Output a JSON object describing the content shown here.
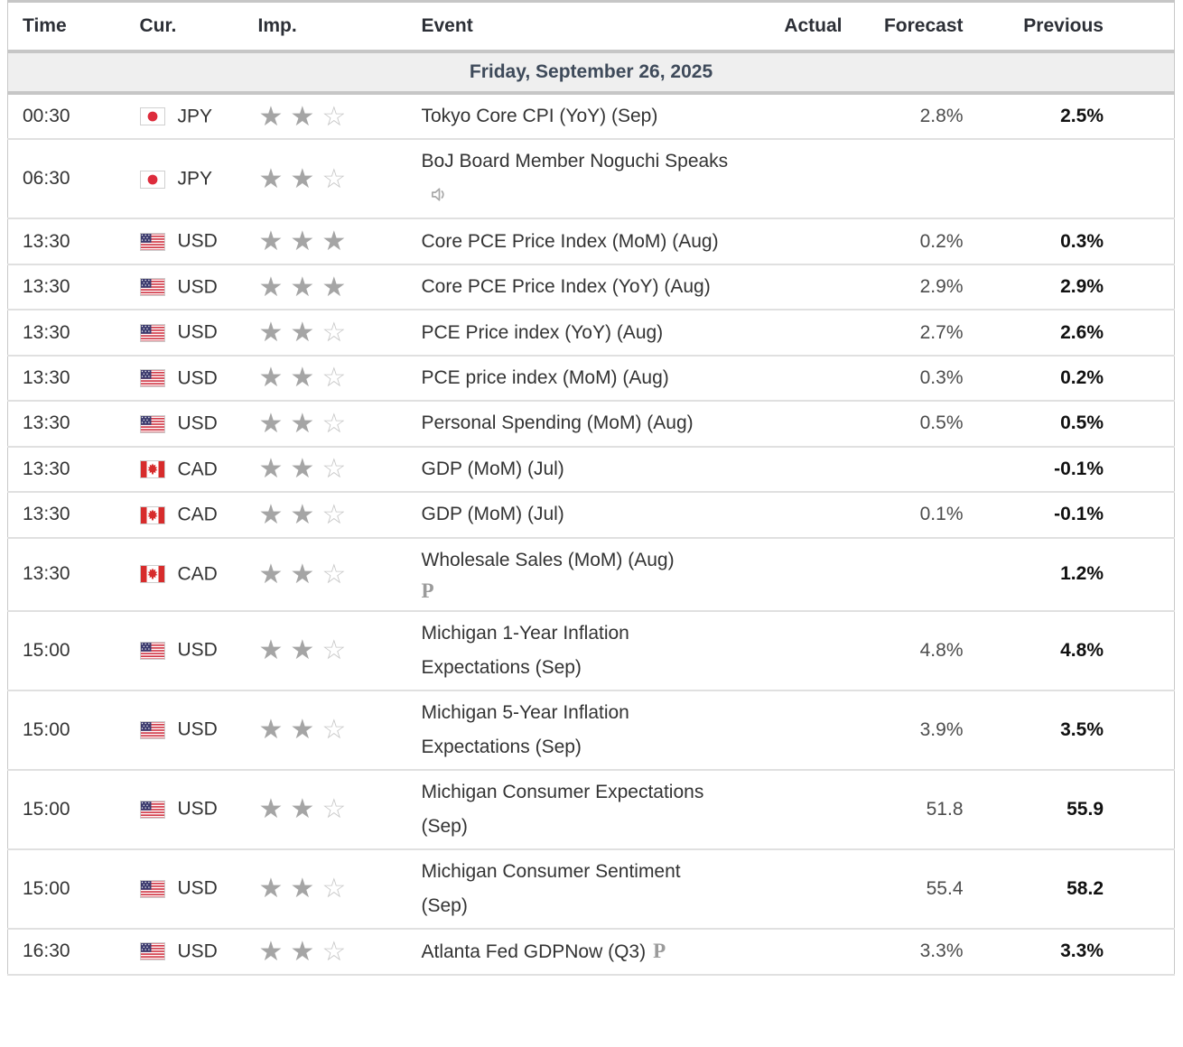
{
  "table": {
    "columns": [
      "Time",
      "Cur.",
      "Imp.",
      "Event",
      "Actual",
      "Forecast",
      "Previous"
    ],
    "date_header": "Friday, September 26, 2025",
    "max_importance": 3,
    "rows": [
      {
        "time": "00:30",
        "currency": "JPY",
        "flag": "JP",
        "importance": 2,
        "event": "Tokyo Core CPI (YoY) (Sep)",
        "speaker_icon": false,
        "preliminary_icon": "none",
        "actual": "",
        "forecast": "2.8%",
        "previous": "2.5%"
      },
      {
        "time": "06:30",
        "currency": "JPY",
        "flag": "JP",
        "importance": 2,
        "event": "BoJ Board Member Noguchi Speaks",
        "speaker_icon": true,
        "preliminary_icon": "none",
        "actual": "",
        "forecast": "",
        "previous": ""
      },
      {
        "time": "13:30",
        "currency": "USD",
        "flag": "US",
        "importance": 3,
        "event": "Core PCE Price Index (MoM) (Aug)",
        "speaker_icon": false,
        "preliminary_icon": "none",
        "actual": "",
        "forecast": "0.2%",
        "previous": "0.3%"
      },
      {
        "time": "13:30",
        "currency": "USD",
        "flag": "US",
        "importance": 3,
        "event": "Core PCE Price Index (YoY) (Aug)",
        "speaker_icon": false,
        "preliminary_icon": "none",
        "actual": "",
        "forecast": "2.9%",
        "previous": "2.9%"
      },
      {
        "time": "13:30",
        "currency": "USD",
        "flag": "US",
        "importance": 2,
        "event": "PCE Price index (YoY) (Aug)",
        "speaker_icon": false,
        "preliminary_icon": "none",
        "actual": "",
        "forecast": "2.7%",
        "previous": "2.6%"
      },
      {
        "time": "13:30",
        "currency": "USD",
        "flag": "US",
        "importance": 2,
        "event": "PCE price index (MoM) (Aug)",
        "speaker_icon": false,
        "preliminary_icon": "none",
        "actual": "",
        "forecast": "0.3%",
        "previous": "0.2%"
      },
      {
        "time": "13:30",
        "currency": "USD",
        "flag": "US",
        "importance": 2,
        "event": "Personal Spending (MoM) (Aug)",
        "speaker_icon": false,
        "preliminary_icon": "none",
        "actual": "",
        "forecast": "0.5%",
        "previous": "0.5%"
      },
      {
        "time": "13:30",
        "currency": "CAD",
        "flag": "CA",
        "importance": 2,
        "event": "GDP (MoM) (Jul)",
        "speaker_icon": false,
        "preliminary_icon": "none",
        "actual": "",
        "forecast": "",
        "previous": "-0.1%"
      },
      {
        "time": "13:30",
        "currency": "CAD",
        "flag": "CA",
        "importance": 2,
        "event": "GDP (MoM) (Jul)",
        "speaker_icon": false,
        "preliminary_icon": "none",
        "actual": "",
        "forecast": "0.1%",
        "previous": "-0.1%"
      },
      {
        "time": "13:30",
        "currency": "CAD",
        "flag": "CA",
        "importance": 2,
        "event": "Wholesale Sales (MoM) (Aug)",
        "speaker_icon": false,
        "preliminary_icon": "newline",
        "actual": "",
        "forecast": "",
        "previous": "1.2%"
      },
      {
        "time": "15:00",
        "currency": "USD",
        "flag": "US",
        "importance": 2,
        "event": "Michigan 1-Year Inflation Expectations (Sep)",
        "speaker_icon": false,
        "preliminary_icon": "none",
        "actual": "",
        "forecast": "4.8%",
        "previous": "4.8%"
      },
      {
        "time": "15:00",
        "currency": "USD",
        "flag": "US",
        "importance": 2,
        "event": "Michigan 5-Year Inflation Expectations (Sep)",
        "speaker_icon": false,
        "preliminary_icon": "none",
        "actual": "",
        "forecast": "3.9%",
        "previous": "3.5%"
      },
      {
        "time": "15:00",
        "currency": "USD",
        "flag": "US",
        "importance": 2,
        "event": "Michigan Consumer Expectations (Sep)",
        "speaker_icon": false,
        "preliminary_icon": "none",
        "actual": "",
        "forecast": "51.8",
        "previous": "55.9"
      },
      {
        "time": "15:00",
        "currency": "USD",
        "flag": "US",
        "importance": 2,
        "event": "Michigan Consumer Sentiment (Sep)",
        "speaker_icon": false,
        "preliminary_icon": "none",
        "actual": "",
        "forecast": "55.4",
        "previous": "58.2"
      },
      {
        "time": "16:30",
        "currency": "USD",
        "flag": "US",
        "importance": 2,
        "event": "Atlanta Fed GDPNow (Q3)",
        "speaker_icon": false,
        "preliminary_icon": "inline",
        "actual": "",
        "forecast": "3.3%",
        "previous": "3.3%"
      }
    ]
  },
  "icons": {
    "star_filled": "★",
    "star_empty": "☆",
    "preliminary_label": "P",
    "speaker_label": "speaker-icon"
  },
  "colors": {
    "star_filled": "#a5a5a5",
    "star_empty": "#c7c7c7",
    "date_row_bg": "#efefef",
    "date_row_text": "#3e4a5a",
    "previous_text": "#111111",
    "forecast_text": "#4c4c4c",
    "separator_thin": "#e0e0e0",
    "separator_thick": "#c6c6c6",
    "flag_jp_red": "#dd2c3c",
    "flag_us_red": "#ce2939",
    "flag_us_blue": "#3c3b6e",
    "flag_ca_red": "#d72c2c"
  }
}
